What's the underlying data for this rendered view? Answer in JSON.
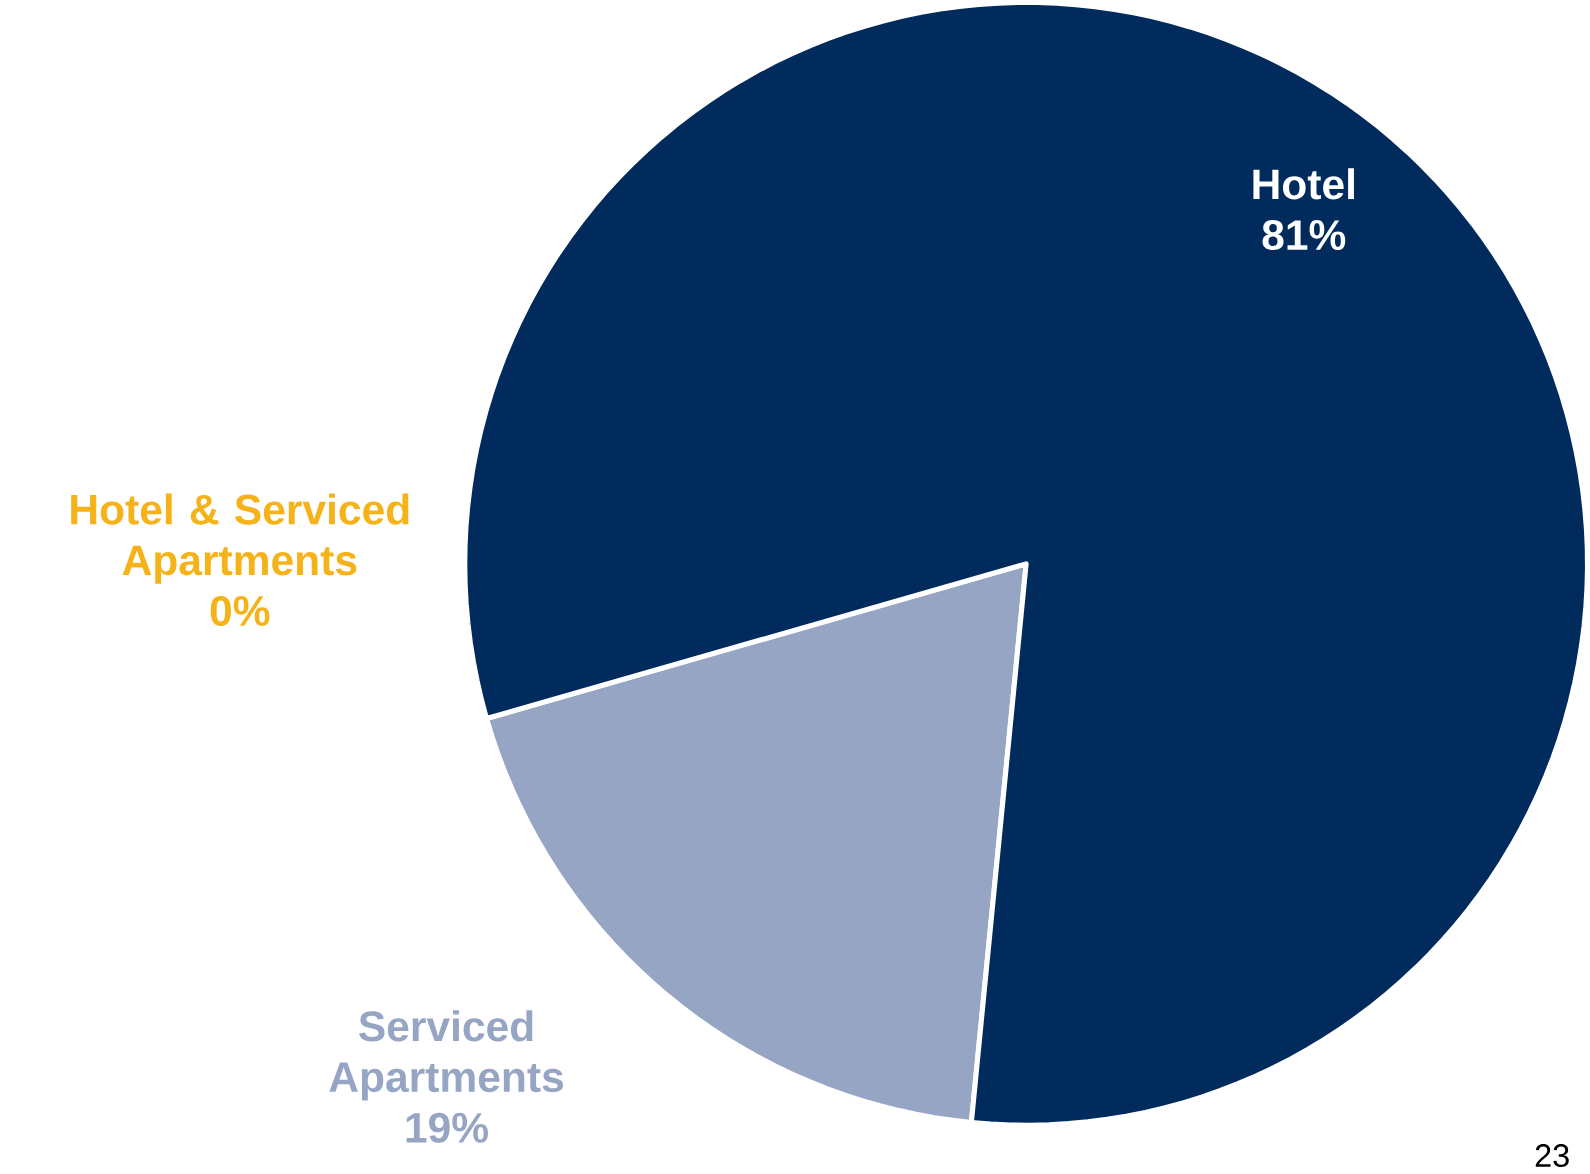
{
  "chart_data": {
    "type": "pie",
    "categories": [
      "Hotel & Serviced Apartments",
      "Serviced Apartments",
      "Hotel"
    ],
    "values": [
      0,
      19,
      81
    ],
    "value_labels": [
      "0%",
      "19%",
      "81%"
    ],
    "colors": [
      "#f5b319",
      "#97a5c4",
      "#002b5c"
    ],
    "annotations": [
      "23"
    ]
  }
}
